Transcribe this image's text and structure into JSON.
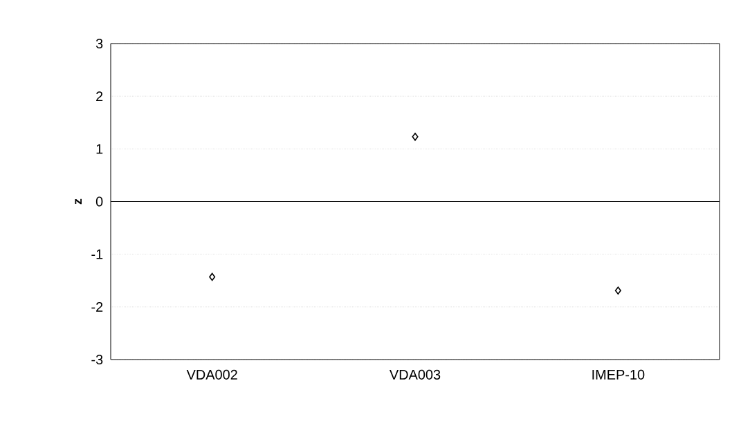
{
  "chart_data": {
    "type": "scatter",
    "ylabel": "z",
    "categories": [
      "VDA002",
      "VDA003",
      "IMEP-10"
    ],
    "values": [
      -1.43,
      1.23,
      -1.69
    ],
    "color": "#000000",
    "marker": "diamond",
    "ylim": [
      -3,
      3
    ],
    "yticks": [
      -3,
      -2,
      -1,
      0,
      1,
      2,
      3
    ],
    "grid": "y",
    "ref_lines": [
      {
        "axis": "y",
        "value": 0,
        "color": "#000000",
        "line_style": "solid"
      }
    ]
  }
}
